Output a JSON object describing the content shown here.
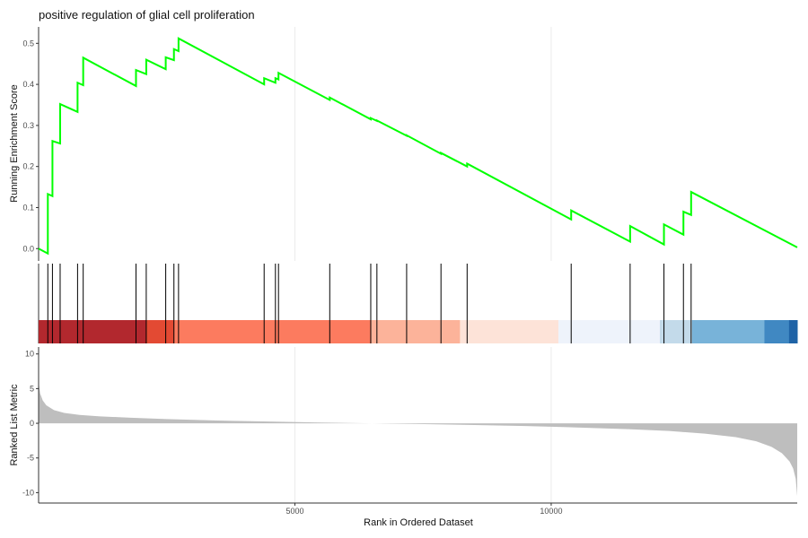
{
  "chart_data": {
    "type": "line",
    "title": "positive regulation of glial cell proliferation",
    "xlabel": "Rank in Ordered Dataset",
    "xlim": [
      0,
      14800
    ],
    "x_ticks": [
      5000,
      10000
    ],
    "x_tick_labels": [
      "5000",
      "10000"
    ],
    "grid": true,
    "panels": {
      "running_score": {
        "ylabel": "Running Enrichment Score",
        "ylim": [
          -0.03,
          0.54
        ],
        "y_ticks": [
          0.0,
          0.1,
          0.2,
          0.3,
          0.4,
          0.5
        ],
        "y_tick_labels": [
          "0.0",
          "0.1",
          "0.2",
          "0.3",
          "0.4",
          "0.5"
        ],
        "line_color": "#00ff00",
        "series": [
          {
            "x": [
              0,
              180,
              180,
              270,
              270,
              420,
              420,
              760,
              760,
              870,
              870,
              1900,
              1900,
              2100,
              2100,
              2480,
              2480,
              2640,
              2640,
              2730,
              2730,
              4400,
              4400,
              4620,
              4620,
              4680,
              4680,
              5680,
              5680,
              6480,
              6480,
              6600,
              6600,
              7180,
              7180,
              7850,
              7850,
              8360,
              8360,
              10390,
              10390,
              11540,
              11540,
              12200,
              12200,
              12580,
              12580,
              12730,
              12730,
              14800
            ],
            "y": [
              0.0,
              -0.012,
              0.133,
              0.128,
              0.262,
              0.256,
              0.352,
              0.333,
              0.404,
              0.398,
              0.465,
              0.396,
              0.435,
              0.425,
              0.46,
              0.437,
              0.466,
              0.459,
              0.486,
              0.481,
              0.512,
              0.4,
              0.415,
              0.404,
              0.415,
              0.412,
              0.428,
              0.362,
              0.368,
              0.315,
              0.318,
              0.311,
              0.312,
              0.275,
              0.276,
              0.231,
              0.233,
              0.2,
              0.207,
              0.071,
              0.093,
              0.017,
              0.055,
              0.01,
              0.059,
              0.034,
              0.09,
              0.082,
              0.138,
              0.003
            ]
          }
        ]
      },
      "hits": {
        "positions": [
          180,
          270,
          420,
          760,
          870,
          1900,
          2100,
          2480,
          2640,
          2730,
          4400,
          4620,
          4680,
          5680,
          6480,
          6600,
          7180,
          7850,
          8360,
          10390,
          11540,
          12200,
          12580,
          12730
        ]
      },
      "rank_color_bar": {
        "segments": [
          {
            "from": 0,
            "to": 2100,
            "color": "#b2282e"
          },
          {
            "from": 2100,
            "to": 2640,
            "color": "#e34a33"
          },
          {
            "from": 2640,
            "to": 6480,
            "color": "#fc7b5f"
          },
          {
            "from": 6480,
            "to": 8220,
            "color": "#fcb39a"
          },
          {
            "from": 8220,
            "to": 10140,
            "color": "#fde3d8"
          },
          {
            "from": 10140,
            "to": 12120,
            "color": "#eef3fb"
          },
          {
            "from": 12120,
            "to": 12750,
            "color": "#c3daea"
          },
          {
            "from": 12750,
            "to": 14160,
            "color": "#78b3d9"
          },
          {
            "from": 14160,
            "to": 14640,
            "color": "#4088c2"
          },
          {
            "from": 14640,
            "to": 14800,
            "color": "#1f63a6"
          }
        ]
      },
      "ranked_metric": {
        "ylabel": "Ranked List Metric",
        "ylim": [
          -11.5,
          11
        ],
        "y_ticks": [
          -10,
          -5,
          0,
          5,
          10
        ],
        "y_tick_labels": [
          "-10",
          "-5",
          "0",
          "5",
          "10"
        ],
        "fill_color": "#bebebe",
        "curve": {
          "x": [
            0,
            30,
            80,
            150,
            300,
            500,
            800,
            1200,
            1800,
            2500,
            3500,
            4500,
            5500,
            6500,
            7400,
            8500,
            9500,
            10500,
            11500,
            12300,
            13000,
            13600,
            14000,
            14300,
            14500,
            14650,
            14720,
            14770,
            14800
          ],
          "y": [
            6.0,
            4.3,
            3.3,
            2.6,
            1.9,
            1.5,
            1.2,
            1.0,
            0.8,
            0.6,
            0.4,
            0.25,
            0.1,
            0.0,
            -0.1,
            -0.25,
            -0.4,
            -0.6,
            -0.85,
            -1.1,
            -1.5,
            -2.0,
            -2.6,
            -3.4,
            -4.3,
            -5.5,
            -6.5,
            -8.0,
            -10.5
          ]
        }
      }
    }
  }
}
